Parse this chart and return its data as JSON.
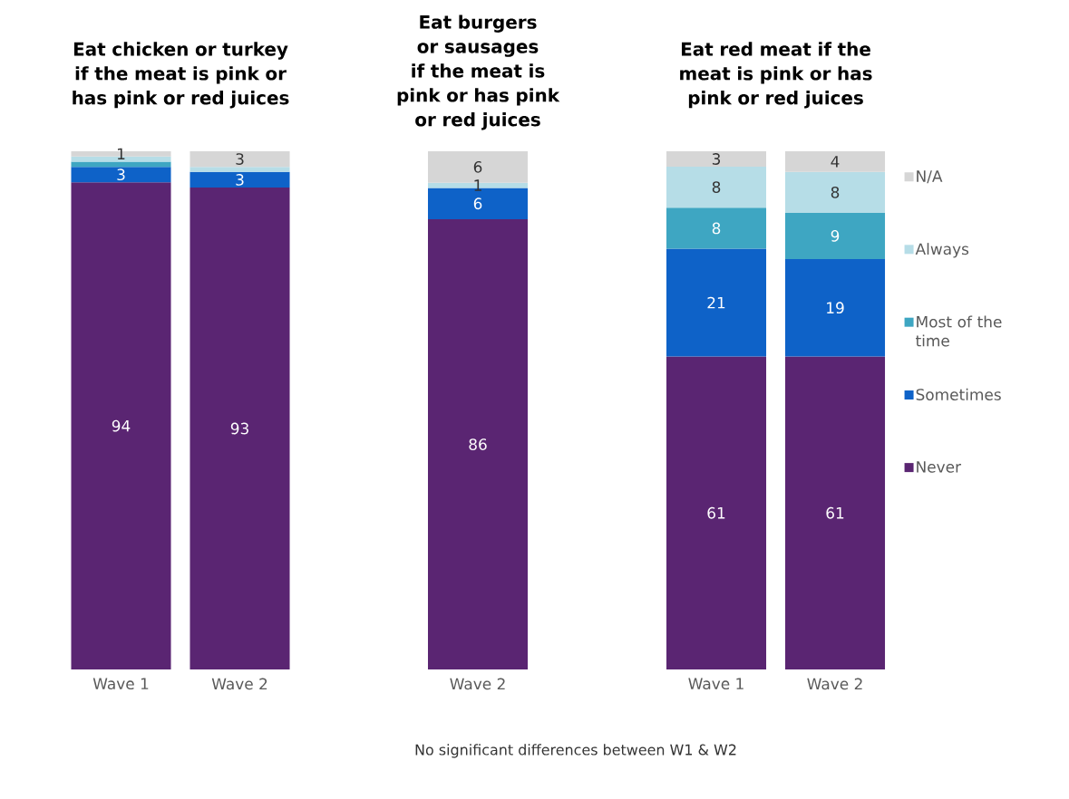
{
  "chart_data": [
    {
      "type": "bar",
      "stacked": true,
      "title": "Eat chicken or turkey if the meat is pink or has pink or red juices",
      "categories": [
        "Wave 1",
        "Wave 2"
      ],
      "series": [
        {
          "color": "#5a2572",
          "values": [
            94,
            93
          ],
          "value_labels": [
            "94",
            "93"
          ]
        },
        {
          "color": "#0e62c8",
          "values": [
            3,
            3
          ],
          "value_labels": [
            "3",
            "3"
          ]
        },
        {
          "color": "#3ea6c2",
          "values": [
            1,
            null
          ],
          "value_labels": [
            null,
            null
          ]
        },
        {
          "color": "#b6dde7",
          "values": [
            1,
            1
          ],
          "value_labels": [
            null,
            null
          ]
        },
        {
          "color": "#d6d6d6",
          "values": [
            1,
            3
          ],
          "value_labels": [
            "1",
            "3"
          ]
        }
      ]
    },
    {
      "type": "bar",
      "stacked": true,
      "title": "Eat burgers or sausages if the meat is pink or has pink or red juices",
      "categories": [
        "Wave 2"
      ],
      "series": [
        {
          "color": "#5a2572",
          "values": [
            86
          ],
          "value_labels": [
            "86"
          ]
        },
        {
          "color": "#0e62c8",
          "values": [
            6
          ],
          "value_labels": [
            "6"
          ]
        },
        {
          "color": "#3ea6c2",
          "values": [
            null
          ],
          "value_labels": [
            null
          ]
        },
        {
          "color": "#b6dde7",
          "values": [
            1
          ],
          "value_labels": [
            "1"
          ]
        },
        {
          "color": "#d6d6d6",
          "values": [
            6
          ],
          "value_labels": [
            "6"
          ]
        }
      ]
    },
    {
      "type": "bar",
      "stacked": true,
      "title": "Eat red meat if the meat is pink or has pink or red juices",
      "categories": [
        "Wave 1",
        "Wave 2"
      ],
      "data_labels": true,
      "legend": "right",
      "annotations": [
        "No significant differences between W1 & W2"
      ],
      "series": [
        {
          "name": "Never",
          "color": "#5a2572",
          "values": [
            61,
            61
          ]
        },
        {
          "name": "Sometimes",
          "color": "#0e62c8",
          "values": [
            21,
            19
          ]
        },
        {
          "name": "Most of the time",
          "color": "#3ea6c2",
          "values": [
            8,
            9
          ]
        },
        {
          "name": "Always",
          "color": "#b6dde7",
          "values": [
            8,
            8
          ]
        },
        {
          "name": "N/A",
          "color": "#d6d6d6",
          "values": [
            3,
            4
          ]
        }
      ]
    }
  ]
}
